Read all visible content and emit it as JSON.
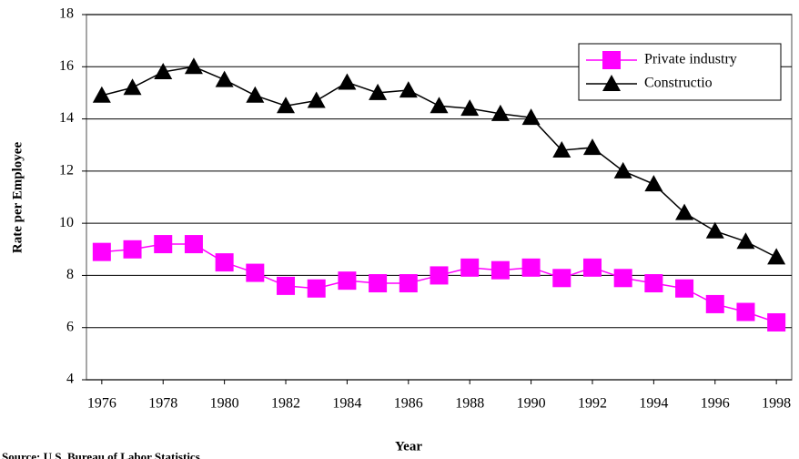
{
  "chart_data": {
    "type": "line",
    "x_label": "Year",
    "y_label": "Rate per Employee",
    "source": "Source: U.S. Bureau of Labor Statistics",
    "x": [
      1976,
      1977,
      1978,
      1979,
      1980,
      1981,
      1982,
      1983,
      1984,
      1985,
      1986,
      1987,
      1988,
      1989,
      1990,
      1991,
      1992,
      1993,
      1994,
      1995,
      1996,
      1997,
      1998
    ],
    "xlim": [
      1975.5,
      1998.5
    ],
    "xticks": [
      1976,
      1978,
      1980,
      1982,
      1984,
      1986,
      1988,
      1990,
      1992,
      1994,
      1996,
      1998
    ],
    "ylim": [
      4,
      18
    ],
    "yticks": [
      4,
      6,
      8,
      10,
      12,
      14,
      16,
      18
    ],
    "grid": true,
    "legend": "top-right",
    "series": [
      {
        "name": "Private industry",
        "color": "#ff00ff",
        "marker": "square",
        "values": [
          8.9,
          9.0,
          9.2,
          9.2,
          8.5,
          8.1,
          7.6,
          7.5,
          7.8,
          7.7,
          7.7,
          8.0,
          8.3,
          8.2,
          8.3,
          7.9,
          8.3,
          7.9,
          7.7,
          7.5,
          6.9,
          6.6,
          6.2
        ]
      },
      {
        "name": "Constructio",
        "color": "#000000",
        "marker": "triangle",
        "values": [
          14.9,
          15.2,
          15.8,
          16.0,
          15.5,
          14.9,
          14.5,
          14.7,
          15.4,
          15.0,
          15.1,
          14.5,
          14.4,
          14.2,
          14.05,
          12.8,
          12.9,
          12.0,
          11.5,
          10.4,
          9.7,
          9.3,
          8.7
        ]
      }
    ]
  }
}
